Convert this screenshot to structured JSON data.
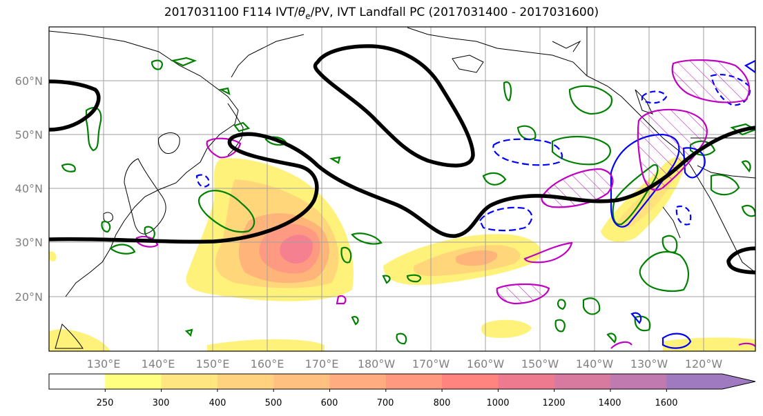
{
  "title": {
    "prefix": "2017031100 F114 IVT/",
    "theta": "θ",
    "theta_sub": "e",
    "suffix": "/PV, IVT Landfall PC (2017031400 - 2017031600)"
  },
  "map": {
    "lat_labels": [
      "60°N",
      "50°N",
      "40°N",
      "30°N",
      "20°N"
    ],
    "lon_labels": [
      "130°E",
      "140°E",
      "150°E",
      "160°E",
      "170°E",
      "180°W",
      "170°W",
      "160°W",
      "150°W",
      "140°W",
      "130°W",
      "120°W"
    ],
    "colors": {
      "land_outline": "#000000",
      "theta_pv_contour": "#000000",
      "positive_contour": "#008000",
      "negative_contour": "#0000ff",
      "landfall_contour": "#c000c0",
      "grid": "#a0a0a0",
      "axis_label": "#808080"
    }
  },
  "colorbar": {
    "ticks": [
      "250",
      "300",
      "400",
      "500",
      "600",
      "700",
      "800",
      "1000",
      "1200",
      "1400",
      "1600"
    ],
    "colors": [
      "#ffffff",
      "#ffff80",
      "#ffe680",
      "#ffd280",
      "#ffc080",
      "#ffad80",
      "#ff9a80",
      "#ff8480",
      "#ee7a90",
      "#d87aa0",
      "#c07ab0",
      "#a07ac0"
    ]
  }
}
